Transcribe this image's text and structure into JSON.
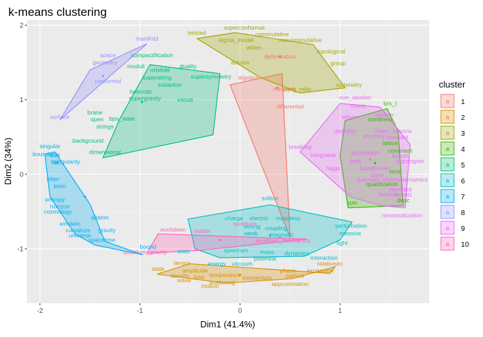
{
  "chart_data": {
    "type": "scatter",
    "title": "k-means clustering",
    "xlabel": "Dim1 (41.4%)",
    "ylabel": "Dim2 (34%)",
    "xlim": [
      -2.13,
      1.89
    ],
    "ylim": [
      -1.73,
      2.07
    ],
    "x_ticks": [
      -2,
      -1,
      0,
      1
    ],
    "y_ticks": [
      -1,
      0,
      1,
      2
    ],
    "x_tick_labels": [
      "-2",
      "-1",
      "0",
      "1"
    ],
    "y_tick_labels": [
      "-1",
      "0",
      "1",
      "2"
    ],
    "grid": true,
    "legend_position": "right",
    "legend_title": "cluster",
    "legend_key_glyph": "a",
    "colors": {
      "1": "#F8766D",
      "2": "#D89000",
      "3": "#A3A500",
      "4": "#39B600",
      "5": "#00BF7D",
      "6": "#00BFC4",
      "7": "#00B0F6",
      "8": "#9590FF",
      "9": "#E76BF3",
      "10": "#FF62BC"
    },
    "series": [
      {
        "name": "1",
        "hull": [
          [
            0.5,
            -0.85
          ],
          [
            0.42,
            1.35
          ],
          [
            -0.1,
            1.2
          ]
        ],
        "center": [
          0.37,
          1.16
        ],
        "points": [
          {
            "label": "deformation",
            "x": 0.4,
            "y": 1.58
          },
          {
            "label": "algebra",
            "x": 0.08,
            "y": 1.3
          },
          {
            "label": "nilpotent",
            "x": 0.44,
            "y": 1.15
          },
          {
            "label": "differential",
            "x": 0.5,
            "y": 0.91
          }
        ]
      },
      {
        "name": "2",
        "hull": [
          [
            -0.83,
            -1.34
          ],
          [
            -0.15,
            -1.46
          ],
          [
            0.52,
            -1.4
          ],
          [
            0.95,
            -1.24
          ],
          [
            0.9,
            -1.33
          ],
          [
            -0.5,
            -1.2
          ]
        ],
        "center": [
          0.0,
          -1.35
        ],
        "points": [
          {
            "label": "tensor",
            "x": -0.58,
            "y": -1.19
          },
          {
            "label": "state",
            "x": -0.82,
            "y": -1.27
          },
          {
            "label": "amplitude",
            "x": -0.45,
            "y": -1.29
          },
          {
            "label": "density",
            "x": -0.6,
            "y": -1.36
          },
          {
            "label": "time",
            "x": -0.41,
            "y": -1.38
          },
          {
            "label": "wave",
            "x": -0.56,
            "y": -1.42
          },
          {
            "label": "temperature",
            "x": -0.15,
            "y": -1.35
          },
          {
            "label": "scattering",
            "x": -0.18,
            "y": -1.45
          },
          {
            "label": "motion",
            "x": -0.3,
            "y": -1.5
          },
          {
            "label": "momentum",
            "x": 0.17,
            "y": -1.39
          },
          {
            "label": "approximation",
            "x": 0.5,
            "y": -1.47
          },
          {
            "label": "phase",
            "x": 0.48,
            "y": -1.29
          },
          {
            "label": "particle",
            "x": 0.55,
            "y": -1.36
          },
          {
            "label": "expansion",
            "x": 0.8,
            "y": -1.29
          },
          {
            "label": "relativistic",
            "x": 0.9,
            "y": -1.2
          }
        ]
      },
      {
        "name": "3",
        "hull": [
          [
            -0.43,
            1.82
          ],
          [
            -0.05,
            1.9
          ],
          [
            0.73,
            1.74
          ],
          [
            1.05,
            1.16
          ],
          [
            0.6,
            1.09
          ],
          [
            0.2,
            1.3
          ]
        ],
        "center": [
          0.4,
          1.58
        ],
        "points": [
          {
            "label": "superconformal",
            "x": 0.04,
            "y": 1.97
          },
          {
            "label": "twisted",
            "x": -0.43,
            "y": 1.9
          },
          {
            "label": "commutative",
            "x": 0.32,
            "y": 1.88
          },
          {
            "label": "noncommutative",
            "x": 0.6,
            "y": 1.8
          },
          {
            "label": "sigma_model",
            "x": -0.04,
            "y": 1.8
          },
          {
            "label": "witten",
            "x": 0.14,
            "y": 1.7
          },
          {
            "label": "topological",
            "x": 0.91,
            "y": 1.65
          },
          {
            "label": "actions",
            "x": 0.0,
            "y": 1.5
          },
          {
            "label": "group",
            "x": 0.98,
            "y": 1.49
          },
          {
            "label": "yang_mills",
            "x": 0.57,
            "y": 1.14
          },
          {
            "label": "symmetry",
            "x": 1.09,
            "y": 1.2
          }
        ]
      },
      {
        "name": "4",
        "hull": [
          [
            1.05,
            0.72
          ],
          [
            1.47,
            0.88
          ],
          [
            1.58,
            0.58
          ],
          [
            1.63,
            -0.42
          ],
          [
            1.08,
            -0.45
          ],
          [
            1.0,
            0.25
          ]
        ],
        "center": [
          1.35,
          0.15
        ],
        "points": [
          {
            "label": "brs_t",
            "x": 1.5,
            "y": 0.95
          },
          {
            "label": "nonlineal",
            "x": 1.4,
            "y": 0.74
          },
          {
            "label": "lattice",
            "x": 1.5,
            "y": 0.42
          },
          {
            "label": "covariant",
            "x": 1.6,
            "y": 0.32
          },
          {
            "label": "local",
            "x": 1.55,
            "y": 0.04
          },
          {
            "label": "quantization",
            "x": 1.42,
            "y": -0.13
          },
          {
            "label": "dirac",
            "x": 1.63,
            "y": -0.35
          },
          {
            "label": "spin",
            "x": 1.12,
            "y": -0.38
          }
        ]
      },
      {
        "name": "5",
        "hull": [
          [
            -0.9,
            1.47
          ],
          [
            -0.2,
            1.35
          ],
          [
            -0.27,
            0.53
          ],
          [
            -1.37,
            0.22
          ],
          [
            -1.2,
            0.75
          ]
        ],
        "center": [
          -0.98,
          0.97
        ],
        "points": [
          {
            "label": "compactification",
            "x": -0.88,
            "y": 1.6
          },
          {
            "label": "moduli",
            "x": -1.04,
            "y": 1.45
          },
          {
            "label": "duality",
            "x": -0.52,
            "y": 1.45
          },
          {
            "label": "orbifold",
            "x": -0.8,
            "y": 1.4
          },
          {
            "label": "superstring",
            "x": -0.83,
            "y": 1.3
          },
          {
            "label": "supersymmetry",
            "x": -0.29,
            "y": 1.31
          },
          {
            "label": "instanton",
            "x": -0.7,
            "y": 1.2
          },
          {
            "label": "heterotic",
            "x": -0.99,
            "y": 1.11
          },
          {
            "label": "supergravity",
            "x": -0.95,
            "y": 1.02
          },
          {
            "label": "vacua",
            "x": -0.55,
            "y": 1.0
          },
          {
            "label": "brane",
            "x": -1.45,
            "y": 0.83
          },
          {
            "label": "open",
            "x": -1.43,
            "y": 0.74
          },
          {
            "label": "bps_state",
            "x": -1.18,
            "y": 0.75
          },
          {
            "label": "strings",
            "x": -1.35,
            "y": 0.64
          },
          {
            "label": "background",
            "x": -1.52,
            "y": 0.45
          },
          {
            "label": "dimensional",
            "x": -1.35,
            "y": 0.3
          }
        ]
      },
      {
        "name": "6",
        "hull": [
          [
            -0.52,
            -0.6
          ],
          [
            0.3,
            -0.41
          ],
          [
            1.12,
            -0.64
          ],
          [
            1.0,
            -0.88
          ],
          [
            0.64,
            -1.1
          ],
          [
            -0.2,
            -1.12
          ],
          [
            -0.45,
            -1.0
          ]
        ],
        "center": [
          0.3,
          -0.82
        ],
        "points": [
          {
            "label": "soliton",
            "x": 0.3,
            "y": -0.32
          },
          {
            "label": "charge",
            "x": -0.06,
            "y": -0.59
          },
          {
            "label": "electric",
            "x": 0.19,
            "y": -0.59
          },
          {
            "label": "massless",
            "x": 0.48,
            "y": -0.59
          },
          {
            "label": "strong",
            "x": 0.12,
            "y": -0.7
          },
          {
            "label": "coupling",
            "x": 0.36,
            "y": -0.72
          },
          {
            "label": "weak",
            "x": 0.11,
            "y": -0.79
          },
          {
            "label": "magnetic",
            "x": 0.42,
            "y": -0.81
          },
          {
            "label": "perturbation",
            "x": 1.11,
            "y": -0.69
          },
          {
            "label": "massive",
            "x": 1.1,
            "y": -0.79
          },
          {
            "label": "light",
            "x": 1.02,
            "y": -0.92
          },
          {
            "label": "spectrum",
            "x": -0.04,
            "y": -1.02
          },
          {
            "label": "mass",
            "x": 0.27,
            "y": -1.04
          },
          {
            "label": "dynamics",
            "x": 0.57,
            "y": -1.06
          },
          {
            "label": "potential",
            "x": 0.25,
            "y": -1.13
          },
          {
            "label": "interaction",
            "x": 0.84,
            "y": -1.12
          },
          {
            "label": "energy",
            "x": -0.23,
            "y": -1.2
          },
          {
            "label": "vacuum",
            "x": 0.02,
            "y": -1.2
          },
          {
            "label": "static",
            "x": -0.56,
            "y": -1.03
          }
        ]
      },
      {
        "name": "7",
        "hull": [
          [
            -1.95,
            0.27
          ],
          [
            -1.85,
            0.3
          ],
          [
            -1.5,
            -0.4
          ],
          [
            -1.35,
            -0.9
          ],
          [
            -0.97,
            -1.08
          ],
          [
            -1.45,
            -0.95
          ],
          [
            -1.65,
            -0.8
          ],
          [
            -1.9,
            -0.3
          ]
        ],
        "center": [
          -1.55,
          -0.3
        ],
        "points": [
          {
            "label": "singular",
            "x": -1.9,
            "y": 0.38
          },
          {
            "label": "boundary",
            "x": -1.95,
            "y": 0.27
          },
          {
            "label": "bulk",
            "x": -1.85,
            "y": 0.26
          },
          {
            "label": "flat",
            "x": -1.85,
            "y": 0.16
          },
          {
            "label": "singularity",
            "x": -1.73,
            "y": 0.17
          },
          {
            "label": "sitter",
            "x": -1.87,
            "y": -0.06
          },
          {
            "label": "klein",
            "x": -1.8,
            "y": -0.16
          },
          {
            "label": "entropy",
            "x": -1.85,
            "y": -0.34
          },
          {
            "label": "horizon",
            "x": -1.8,
            "y": -0.43
          },
          {
            "label": "cosmology",
            "x": -1.82,
            "y": -0.5
          },
          {
            "label": "dilaton",
            "x": -1.4,
            "y": -0.58
          },
          {
            "label": "einstein",
            "x": -1.7,
            "y": -0.66
          },
          {
            "label": "curvature",
            "x": -1.62,
            "y": -0.75
          },
          {
            "label": "gravity",
            "x": -1.33,
            "y": -0.75
          },
          {
            "label": "universe",
            "x": -1.6,
            "y": -0.82
          },
          {
            "label": "spacetime",
            "x": -1.38,
            "y": -0.88
          },
          {
            "label": "bound",
            "x": -0.92,
            "y": -0.97
          }
        ]
      },
      {
        "name": "8",
        "hull": [
          [
            -1.8,
            0.73
          ],
          [
            -0.93,
            1.75
          ],
          [
            -1.5,
            1.4
          ]
        ],
        "center": [
          -1.37,
          1.32
        ],
        "points": [
          {
            "label": "manifold",
            "x": -0.93,
            "y": 1.82
          },
          {
            "label": "space",
            "x": -1.32,
            "y": 1.6
          },
          {
            "label": "geometry",
            "x": -1.35,
            "y": 1.5
          },
          {
            "label": "conformal",
            "x": -1.32,
            "y": 1.25
          },
          {
            "label": "surface",
            "x": -1.8,
            "y": 0.77
          }
        ]
      },
      {
        "name": "9",
        "hull": [
          [
            1.0,
            0.95
          ],
          [
            1.4,
            0.9
          ],
          [
            1.7,
            0.4
          ],
          [
            1.65,
            -0.45
          ],
          [
            1.4,
            -0.42
          ],
          [
            1.1,
            -0.3
          ],
          [
            0.6,
            0.3
          ]
        ],
        "center": [
          1.3,
          0.2
        ],
        "points": [
          {
            "label": "non_abelian",
            "x": 1.15,
            "y": 1.03
          },
          {
            "label": "chiral",
            "x": 1.18,
            "y": 0.92
          },
          {
            "label": "abelian",
            "x": 1.44,
            "y": 0.8
          },
          {
            "label": "wilson",
            "x": 1.1,
            "y": 0.77
          },
          {
            "label": "chern_simons",
            "x": 1.53,
            "y": 0.58
          },
          {
            "label": "operator",
            "x": 1.05,
            "y": 0.58
          },
          {
            "label": "anomaly",
            "x": 1.34,
            "y": 0.51
          },
          {
            "label": "invariant",
            "x": 1.57,
            "y": 0.5
          },
          {
            "label": "breaking",
            "x": 0.6,
            "y": 0.37
          },
          {
            "label": "integrable",
            "x": 0.83,
            "y": 0.26
          },
          {
            "label": "application",
            "x": 1.25,
            "y": 0.29
          },
          {
            "label": "boson",
            "x": 1.6,
            "y": 0.25
          },
          {
            "label": "path",
            "x": 1.15,
            "y": 0.18
          },
          {
            "label": "lagrangian",
            "x": 1.7,
            "y": 0.18
          },
          {
            "label": "higgs",
            "x": 0.93,
            "y": 0.08
          },
          {
            "label": "hamiltonian",
            "x": 1.35,
            "y": 0.08
          },
          {
            "label": "cone",
            "x": 1.37,
            "y": -0.01
          },
          {
            "label": "quantum_chromodynamics",
            "x": 1.52,
            "y": -0.07
          },
          {
            "label": "standard",
            "x": 1.6,
            "y": -0.2
          },
          {
            "label": "fermion",
            "x": 1.48,
            "y": -0.27
          },
          {
            "label": "lorentz",
            "x": 1.63,
            "y": -0.27
          },
          {
            "label": "renormalization",
            "x": 1.62,
            "y": -0.55
          }
        ]
      },
      {
        "name": "10",
        "hull": [
          [
            -0.82,
            -0.8
          ],
          [
            0.67,
            -0.87
          ],
          [
            -0.4,
            -1.02
          ],
          [
            -0.93,
            -1.06
          ]
        ],
        "center": [
          -0.2,
          -0.88
        ],
        "points": [
          {
            "label": "euclidean",
            "x": -0.67,
            "y": -0.74
          },
          {
            "label": "matter",
            "x": -0.38,
            "y": -0.76
          },
          {
            "label": "quantum",
            "x": 0.05,
            "y": -0.66
          },
          {
            "label": "quantum_mechanics",
            "x": 0.43,
            "y": -0.89
          },
          {
            "label": "quantum_gravity",
            "x": -0.95,
            "y": -1.04
          }
        ]
      }
    ]
  }
}
